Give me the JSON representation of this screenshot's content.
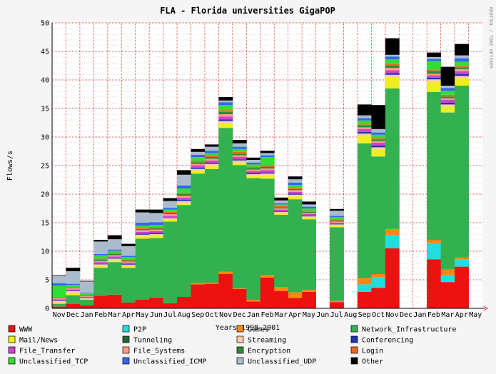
{
  "page": {
    "title": "FLA - Florida universities GigaPOP",
    "credit": "RRDTOOL / TOBI OETIKER"
  },
  "chart_data": {
    "type": "bar",
    "stacked": true,
    "title": "FLA - Florida universities GigaPOP",
    "xlabel": "Years 1998-2001",
    "ylabel": "Flows/s",
    "ylim": [
      0,
      50
    ],
    "yticks": [
      0,
      5,
      10,
      15,
      20,
      25,
      30,
      35,
      40,
      45,
      50
    ],
    "grid": true,
    "legend_position": "bottom",
    "categories": [
      "Nov",
      "Dec",
      "Jan",
      "Feb",
      "Mar",
      "Apr",
      "May",
      "Jun",
      "Jul",
      "Aug",
      "Sep",
      "Oct",
      "Nov",
      "Dec",
      "Jan",
      "Feb",
      "Mar",
      "Apr",
      "May",
      "Jun",
      "Jul",
      "Aug",
      "Sep",
      "Oct",
      "Nov",
      "Dec",
      "Jan",
      "Feb",
      "Mar",
      "Apr",
      "May"
    ],
    "series": [
      {
        "name": "WWW",
        "color": "#ee1111",
        "values": [
          0.3,
          0.8,
          0.5,
          2.2,
          2.4,
          1.0,
          1.5,
          1.9,
          0.9,
          2.0,
          4.2,
          4.3,
          6.0,
          3.4,
          1.2,
          5.4,
          3.0,
          1.8,
          2.9,
          0,
          1.1,
          0,
          2.9,
          3.6,
          10.5,
          0,
          0,
          8.6,
          4.6,
          7.3,
          0
        ]
      },
      {
        "name": "P2P",
        "color": "#22dddd",
        "values": [
          0,
          0,
          0,
          0,
          0,
          0,
          0,
          0,
          0,
          0,
          0,
          0,
          0,
          0,
          0,
          0,
          0,
          0,
          0,
          0,
          0,
          0,
          1.3,
          1.8,
          2.3,
          0,
          0,
          2.8,
          1.2,
          1.3,
          0
        ]
      },
      {
        "name": "Games",
        "color": "#ff8811",
        "values": [
          0,
          0,
          0,
          0,
          0,
          0,
          0,
          0,
          0,
          0,
          0.2,
          0.2,
          0.4,
          0.1,
          0.3,
          0.4,
          0.7,
          1.0,
          0.3,
          0,
          0.2,
          0,
          1.1,
          0.6,
          1.1,
          0,
          0,
          0.6,
          1.0,
          0.3,
          0
        ]
      },
      {
        "name": "Network_Infrastructure",
        "color": "#33b050",
        "values": [
          0.5,
          1.5,
          1.0,
          4.9,
          5.7,
          6.1,
          10.7,
          10.4,
          14.3,
          16.1,
          19.2,
          19.9,
          25.2,
          21.6,
          21.3,
          16.9,
          12.7,
          16.3,
          12.4,
          0,
          12.9,
          0,
          23.6,
          20.6,
          24.6,
          0,
          0,
          25.9,
          27.5,
          30.1,
          0
        ]
      },
      {
        "name": "Mail/News",
        "color": "#eeee22",
        "values": [
          0.2,
          0.2,
          0.1,
          0.3,
          0.3,
          0.3,
          0.4,
          0.4,
          0.3,
          0.3,
          0.5,
          0.5,
          0.8,
          0.4,
          0.4,
          0.6,
          0.3,
          0.5,
          0.3,
          0,
          0.3,
          0,
          1.3,
          1.2,
          1.9,
          0,
          0,
          1.8,
          1.0,
          1.3,
          0
        ]
      },
      {
        "name": "Tunneling",
        "color": "#226633",
        "values": [
          0,
          0,
          0,
          0,
          0,
          0,
          0,
          0,
          0,
          0,
          0,
          0,
          0,
          0,
          0,
          0,
          0,
          0,
          0,
          0,
          0,
          0,
          0,
          0,
          0,
          0,
          0,
          0,
          0,
          0,
          0
        ]
      },
      {
        "name": "Streaming",
        "color": "#ffccaa",
        "values": [
          0.3,
          0.5,
          0.2,
          0.3,
          0.3,
          0.2,
          0.3,
          0.3,
          0.3,
          0.4,
          0.3,
          0.4,
          0.4,
          0.4,
          0.3,
          0.3,
          0.2,
          0.3,
          0.2,
          0,
          0.2,
          0,
          0.4,
          0.4,
          0.5,
          0,
          0,
          0.4,
          0.4,
          0.4,
          0
        ]
      },
      {
        "name": "Conferencing",
        "color": "#2233aa",
        "values": [
          0.1,
          0.1,
          0.1,
          0.1,
          0.1,
          0.1,
          0.2,
          0.2,
          0.1,
          0.2,
          0.2,
          0.2,
          0.3,
          0.2,
          0.2,
          0.2,
          0.1,
          0.2,
          0.1,
          0,
          0.1,
          0,
          0.3,
          0.3,
          0.3,
          0,
          0,
          0.3,
          0.3,
          0.3,
          0
        ]
      },
      {
        "name": "File_Transfer",
        "color": "#cc44cc",
        "values": [
          0.2,
          0.2,
          0.1,
          0.3,
          0.3,
          0.3,
          0.3,
          0.3,
          0.3,
          0.4,
          0.4,
          0.4,
          0.5,
          0.4,
          0.3,
          0.4,
          0.3,
          0.3,
          0.3,
          0,
          0.2,
          0,
          0.5,
          0.5,
          0.5,
          0,
          0,
          0.4,
          0.5,
          0.5,
          0
        ]
      },
      {
        "name": "File_Systems",
        "color": "#ff9988",
        "values": [
          0.2,
          0.2,
          0.1,
          0.2,
          0.2,
          0.2,
          0.3,
          0.3,
          0.3,
          0.3,
          0.3,
          0.3,
          0.4,
          0.3,
          0.3,
          0.3,
          0.2,
          0.3,
          0.2,
          0,
          0.2,
          0,
          0.3,
          0.3,
          0.4,
          0,
          0,
          0.3,
          0.3,
          0.4,
          0
        ]
      },
      {
        "name": "Encryption",
        "color": "#338833",
        "values": [
          0.1,
          0.1,
          0.1,
          0.2,
          0.2,
          0.2,
          0.2,
          0.2,
          0.2,
          0.3,
          0.3,
          0.3,
          0.4,
          0.3,
          0.3,
          0.3,
          0.2,
          0.2,
          0.2,
          0,
          0.2,
          0,
          0.3,
          0.3,
          0.4,
          0,
          0,
          0.4,
          0.3,
          0.3,
          0
        ]
      },
      {
        "name": "Login",
        "color": "#ee6622",
        "values": [
          0.1,
          0.1,
          0.1,
          0.2,
          0.2,
          0.2,
          0.2,
          0.2,
          0.2,
          0.2,
          0.2,
          0.3,
          0.3,
          0.3,
          0.2,
          0.3,
          0.2,
          0.2,
          0.2,
          0,
          0.2,
          0,
          0.2,
          0.2,
          0.3,
          0,
          0,
          0.2,
          0.3,
          0.2,
          0
        ]
      },
      {
        "name": "Unclassified_TCP",
        "color": "#33dd33",
        "values": [
          2.0,
          0.4,
          0.3,
          0.6,
          0.4,
          0.4,
          0.4,
          0.4,
          0.4,
          0.8,
          0.7,
          0.4,
          0.9,
          0.5,
          0.4,
          1.4,
          0.3,
          0.5,
          0.4,
          0,
          0.4,
          0,
          0.7,
          0.6,
          0.8,
          0,
          0,
          1.6,
          0.7,
          0.8,
          0
        ]
      },
      {
        "name": "Unclassified_ICMP",
        "color": "#3366ee",
        "values": [
          0.4,
          0.2,
          0.1,
          0.2,
          0.2,
          0.2,
          0.5,
          0.5,
          0.3,
          0.5,
          0.4,
          0.4,
          0.5,
          0.4,
          0.3,
          0.3,
          0.2,
          0.4,
          0.3,
          0,
          0.2,
          0,
          0.4,
          0.4,
          0.5,
          0,
          0,
          0.4,
          0.5,
          0.6,
          0
        ]
      },
      {
        "name": "Unclassified_UDP",
        "color": "#aabbcc",
        "values": [
          1.3,
          2.2,
          2.0,
          2.2,
          1.8,
          1.7,
          1.8,
          1.6,
          1.2,
          1.9,
          0.5,
          0.7,
          0.3,
          0.6,
          0.5,
          0.4,
          0.5,
          0.6,
          0.4,
          0,
          0.9,
          0,
          0.5,
          0.6,
          0.3,
          0,
          0,
          0.3,
          0.4,
          0.5,
          0
        ]
      },
      {
        "name": "Other",
        "color": "#000000",
        "values": [
          0.1,
          0.6,
          0.1,
          0.3,
          0.7,
          0.4,
          0.5,
          0.6,
          0.5,
          0.8,
          0.5,
          0.4,
          0.6,
          0.6,
          0.4,
          0.4,
          0.5,
          0.5,
          0.5,
          0,
          0.3,
          0,
          1.9,
          4.2,
          2.9,
          0,
          0,
          0.8,
          3.3,
          2.0,
          0
        ]
      }
    ]
  },
  "legend": [
    {
      "label": "WWW",
      "color": "#ee1111"
    },
    {
      "label": "P2P",
      "color": "#22dddd"
    },
    {
      "label": "Games",
      "color": "#ff8811"
    },
    {
      "label": "Network_Infrastructure",
      "color": "#33b050"
    },
    {
      "label": "Mail/News",
      "color": "#eeee22"
    },
    {
      "label": "Tunneling",
      "color": "#226633"
    },
    {
      "label": "Streaming",
      "color": "#ffccaa"
    },
    {
      "label": "Conferencing",
      "color": "#2233aa"
    },
    {
      "label": "File_Transfer",
      "color": "#cc44cc"
    },
    {
      "label": "File_Systems",
      "color": "#ff9988"
    },
    {
      "label": "Encryption",
      "color": "#338833"
    },
    {
      "label": "Login",
      "color": "#ee6622"
    },
    {
      "label": "Unclassified_TCP",
      "color": "#33dd33"
    },
    {
      "label": "Unclassified_ICMP",
      "color": "#3366ee"
    },
    {
      "label": "Unclassified_UDP",
      "color": "#aabbcc"
    },
    {
      "label": "Other",
      "color": "#000000"
    }
  ],
  "colors": {
    "background": "#f5f5f5",
    "plot_background": "#ffffff",
    "grid": "#cc2222",
    "axis": "#000000",
    "arrow": "#dd2222"
  }
}
